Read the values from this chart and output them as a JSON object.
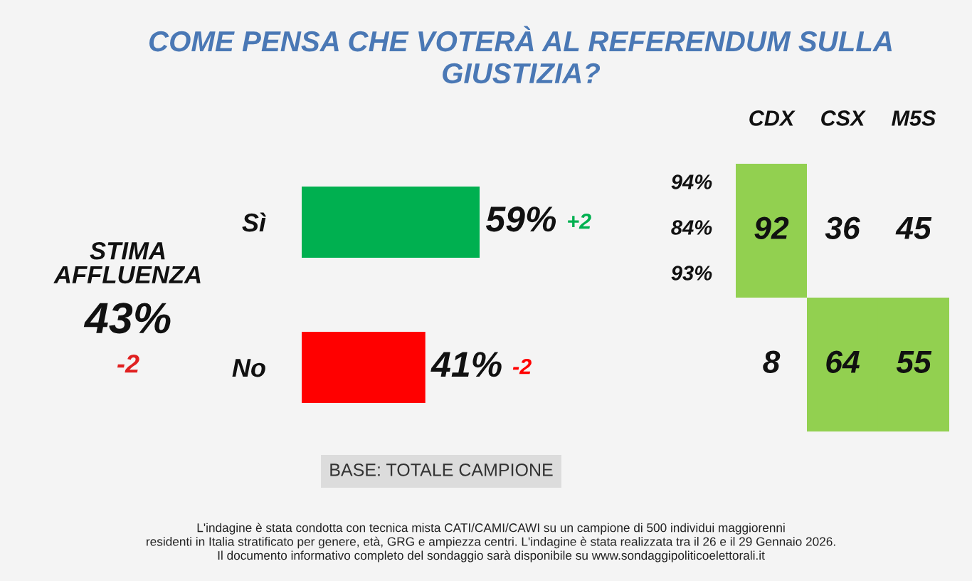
{
  "chart_data": [
    {
      "type": "other",
      "title": "STIMA\nAFFLUENZA",
      "annotations": [
        "43%",
        "-2"
      ]
    },
    {
      "type": "bar",
      "orientation": "horizontal",
      "title": "COME PENSA CHE VOTERÀ AL REFERENDUM SULLA\nGIUSTIZIA?",
      "categories": [
        "Sì",
        "No"
      ],
      "values": [
        59,
        41
      ],
      "colors": [
        "#00b050",
        "#ff0000"
      ],
      "value_labels": [
        "59%",
        "41%"
      ],
      "tick_labels": "y",
      "annotations": [
        "+2",
        "-2",
        "BASE: TOTALE CAMPIONE",
        "L'indagine è stata condotta con tecnica mista CATI/CAMI/CAWI su un campione di 500 individui maggiorenni\nresidenti in Italia stratificato per genere, età, GRG e ampiezza centri. L'indagine è stata realizzata tra il 26 e il 29 Gennaio 2026.\nIl documento informativo completo del sondaggio sarà disponibile su www.sondaggipoliticoelettorali.it"
      ]
    },
    {
      "type": "heatmap",
      "categories": [
        "CDX",
        "CSX",
        "M5S"
      ],
      "y_categories": [
        null,
        null
      ],
      "cells": [
        [
          92,
          36,
          45
        ],
        [
          8,
          64,
          55
        ]
      ],
      "data_labels": true,
      "color": "#92d050",
      "tick_labels": "x",
      "annotations": [
        "94%",
        "84%",
        "93%"
      ]
    }
  ]
}
